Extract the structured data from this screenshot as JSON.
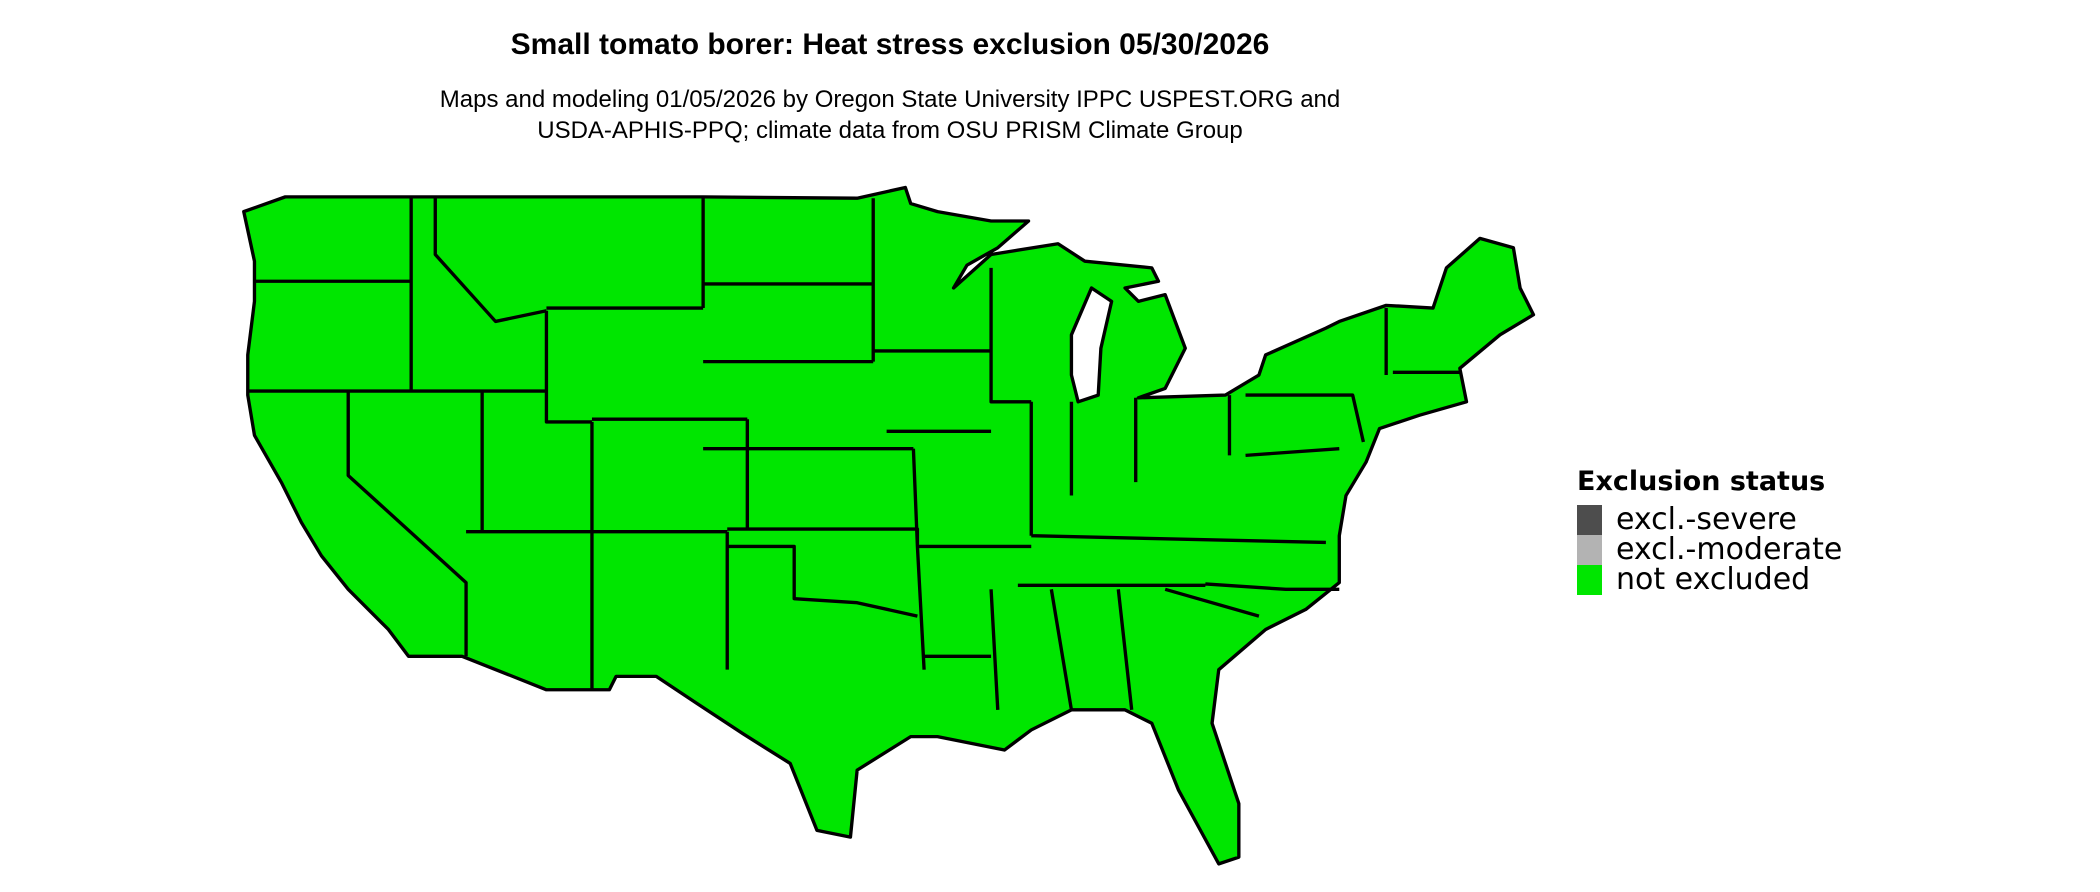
{
  "title": "Small tomato borer: Heat stress exclusion 05/30/2026",
  "subtitle_lines": [
    "Maps and modeling 01/05/2026 by Oregon State University IPPC USPEST.ORG and",
    "USDA-APHIS-PPQ; climate data from OSU PRISM Climate Group"
  ],
  "map": {
    "region": "Contiguous United States",
    "fill_color": "#00e600",
    "border_color": "#000000",
    "all_states_status": "not excluded"
  },
  "legend": {
    "title": "Exclusion status",
    "items": [
      {
        "label": "excl.-severe",
        "color": "#4d4d4d"
      },
      {
        "label": "excl.-moderate",
        "color": "#b3b3b3"
      },
      {
        "label": "not excluded",
        "color": "#00e600"
      }
    ]
  }
}
